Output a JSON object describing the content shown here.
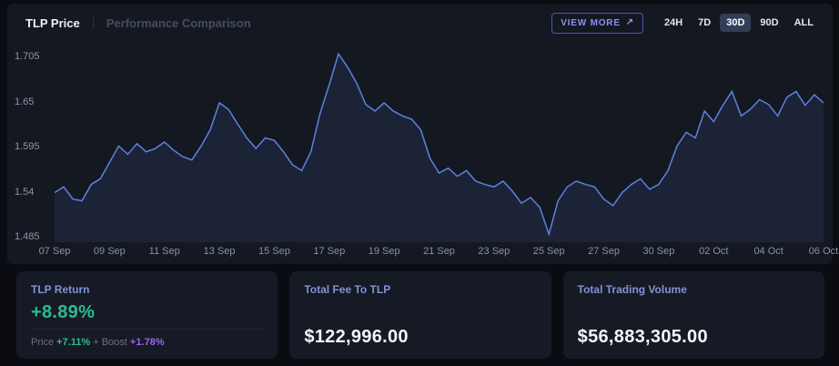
{
  "header": {
    "tabs": [
      {
        "label": "TLP Price",
        "active": true
      },
      {
        "label": "Performance Comparison",
        "active": false
      }
    ],
    "view_more_label": "VIEW MORE",
    "view_more_icon": "↗",
    "ranges": [
      {
        "label": "24H",
        "active": false
      },
      {
        "label": "7D",
        "active": false
      },
      {
        "label": "30D",
        "active": true
      },
      {
        "label": "90D",
        "active": false
      },
      {
        "label": "ALL",
        "active": false
      }
    ]
  },
  "chart_data": {
    "type": "area",
    "title": "TLP Price",
    "xlabel": "",
    "ylabel": "",
    "x_labels": [
      "07 Sep",
      "09 Sep",
      "11 Sep",
      "13 Sep",
      "15 Sep",
      "17 Sep",
      "19 Sep",
      "21 Sep",
      "23 Sep",
      "25 Sep",
      "27 Sep",
      "30 Sep",
      "02 Oct",
      "04 Oct",
      "06 Oct"
    ],
    "y_ticks": [
      "1.705",
      "1.65",
      "1.595",
      "1.54",
      "1.485"
    ],
    "ylim": [
      1.485,
      1.725
    ],
    "grid": false,
    "legend": false,
    "line_color": "#5b82e0",
    "fill_color": "#1d2336",
    "series": [
      {
        "name": "TLP Price",
        "values": [
          1.538,
          1.545,
          1.53,
          1.528,
          1.548,
          1.555,
          1.575,
          1.595,
          1.585,
          1.598,
          1.588,
          1.592,
          1.6,
          1.59,
          1.582,
          1.578,
          1.595,
          1.615,
          1.648,
          1.64,
          1.622,
          1.605,
          1.592,
          1.605,
          1.602,
          1.588,
          1.572,
          1.565,
          1.588,
          1.635,
          1.67,
          1.708,
          1.692,
          1.672,
          1.646,
          1.638,
          1.648,
          1.638,
          1.632,
          1.628,
          1.615,
          1.58,
          1.562,
          1.568,
          1.558,
          1.565,
          1.552,
          1.548,
          1.545,
          1.552,
          1.54,
          1.525,
          1.532,
          1.52,
          1.487,
          1.528,
          1.545,
          1.552,
          1.548,
          1.545,
          1.53,
          1.522,
          1.538,
          1.548,
          1.555,
          1.542,
          1.548,
          1.565,
          1.595,
          1.612,
          1.605,
          1.638,
          1.625,
          1.645,
          1.662,
          1.632,
          1.64,
          1.652,
          1.646,
          1.632,
          1.655,
          1.662,
          1.645,
          1.658,
          1.648
        ]
      }
    ]
  },
  "cards": [
    {
      "title": "TLP Return",
      "value": "+8.89%",
      "breakdown": {
        "price_label": "Price",
        "price_value": "+7.11%",
        "plus": "+",
        "boost_label": "Boost",
        "boost_value": "+1.78%"
      }
    },
    {
      "title": "Total Fee To TLP",
      "value": "$122,996.00"
    },
    {
      "title": "Total Trading Volume",
      "value": "$56,883,305.00"
    }
  ],
  "colors": {
    "accent_blue": "#5b82e0",
    "positive_green": "#2dbd8c",
    "boost_purple": "#9a63f5",
    "card_title": "#8094d6",
    "range_active_bg": "#333d56"
  }
}
